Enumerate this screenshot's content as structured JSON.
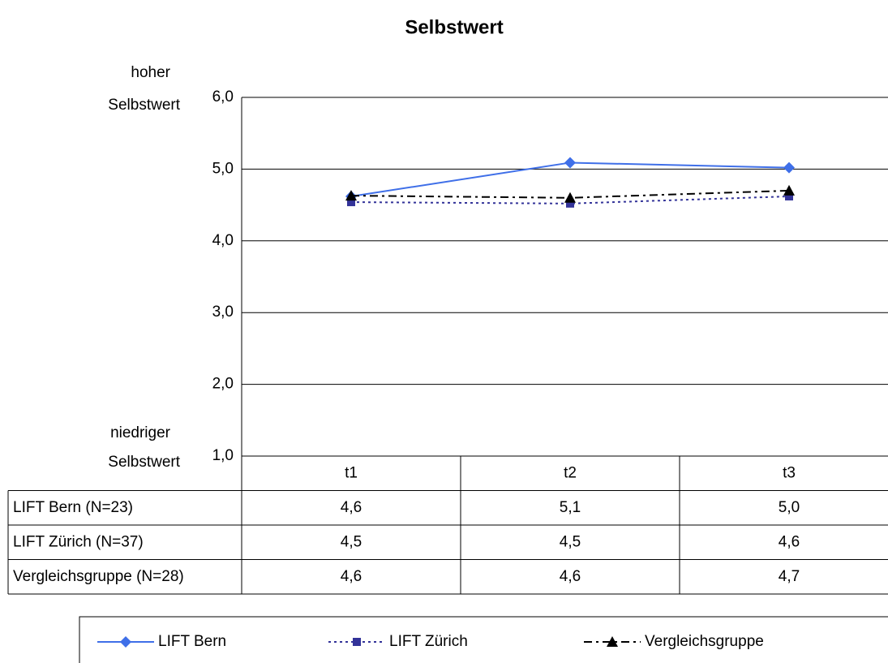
{
  "chart_data": {
    "type": "line",
    "title": "Selbstwert",
    "y_top_label": [
      "hoher",
      "Selbstwert"
    ],
    "y_bottom_label": [
      "niedriger",
      "Selbstwert"
    ],
    "categories": [
      "t1",
      "t2",
      "t3"
    ],
    "ylim": [
      1,
      6
    ],
    "yticks": [
      {
        "value": 1,
        "label": "1,0"
      },
      {
        "value": 2,
        "label": "2,0"
      },
      {
        "value": 3,
        "label": "3,0"
      },
      {
        "value": 4,
        "label": "4,0"
      },
      {
        "value": 5,
        "label": "5,0"
      },
      {
        "value": 6,
        "label": "6,0"
      }
    ],
    "grid": true,
    "series": [
      {
        "name": "LIFT Bern",
        "table_label": "LIFT Bern (N=23)",
        "color": "#3f6fe8",
        "dash": "solid",
        "marker": "diamond",
        "values": [
          4.62,
          5.09,
          5.02
        ],
        "value_labels": [
          "4,6",
          "5,1",
          "5,0"
        ]
      },
      {
        "name": "LIFT Zürich",
        "table_label": "LIFT Zürich (N=37)",
        "color": "#333399",
        "dash": "dot",
        "marker": "square",
        "values": [
          4.54,
          4.52,
          4.62
        ],
        "value_labels": [
          "4,5",
          "4,5",
          "4,6"
        ]
      },
      {
        "name": "Vergleichsgruppe",
        "table_label": "Vergleichsgruppe (N=28)",
        "color": "#000000",
        "dash": "dashdot",
        "marker": "triangle",
        "values": [
          4.63,
          4.6,
          4.7
        ],
        "value_labels": [
          "4,6",
          "4,6",
          "4,7"
        ]
      }
    ]
  }
}
